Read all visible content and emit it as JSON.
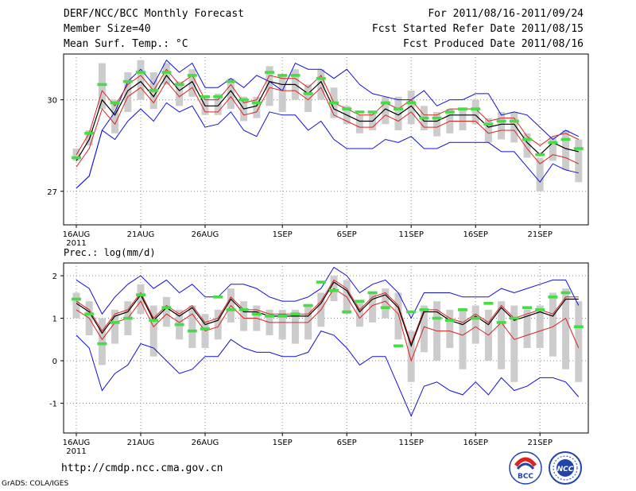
{
  "header": {
    "title": "DERF/NCC/BCC Monthly Forecast",
    "member_size": "Member Size=40",
    "variable": "Mean Surf. Temp.: °C",
    "period": "For 2011/08/16-2011/09/24",
    "started": "Fcst Started Refer Date 2011/08/15",
    "produced": "Fcst Produced Date 2011/08/16"
  },
  "footer": {
    "url": "http://cmdp.ncc.cma.gov.cn",
    "grads": "GrADS: COLA/IGES",
    "logo_bcc": "BCC",
    "logo_ncc": "NCC"
  },
  "colors": {
    "envelope": "#1010dd",
    "spread": "#dd2222",
    "mean": "#000000",
    "observed": "#44dd44",
    "bar": "#cccccc",
    "grid": "#888888"
  },
  "chart_data": [
    {
      "type": "line",
      "title": "Mean Surf. Temp.: °C",
      "x_tick_labels": [
        "16AUG",
        "21AUG",
        "26AUG",
        "1SEP",
        "6SEP",
        "11SEP",
        "16SEP",
        "21SEP"
      ],
      "x_year_label": "2011",
      "x_tick_days": [
        1,
        6,
        11,
        17,
        22,
        27,
        32,
        37
      ],
      "days": [
        1,
        40
      ],
      "ylim": [
        25.9,
        31.5
      ],
      "y_ticks": [
        27,
        30
      ],
      "y_tick_labels": [
        "27",
        "30"
      ],
      "series": [
        {
          "name": "max",
          "values": [
            27.1,
            27.5,
            29.0,
            29.6,
            30.6,
            31.0,
            30.5,
            31.3,
            30.9,
            31.2,
            30.4,
            30.4,
            30.7,
            30.4,
            30.8,
            30.6,
            30.3,
            31.2,
            31.0,
            31.0,
            30.7,
            31.0,
            30.5,
            30.2,
            30.1,
            30.0,
            30.0,
            30.3,
            29.8,
            30.0,
            30.0,
            30.2,
            30.2,
            29.5,
            29.6,
            29.5,
            29.1,
            28.7,
            29.0,
            28.8
          ]
        },
        {
          "name": "ensemble upper",
          "values": [
            28.2,
            28.9,
            30.3,
            29.8,
            30.5,
            30.8,
            30.3,
            31.0,
            30.5,
            30.8,
            30.0,
            30.0,
            30.5,
            29.9,
            30.0,
            30.8,
            30.7,
            30.7,
            30.4,
            30.8,
            29.9,
            29.7,
            29.5,
            29.5,
            29.9,
            29.7,
            30.0,
            29.5,
            29.5,
            29.7,
            29.7,
            29.7,
            29.3,
            29.4,
            29.4,
            28.8,
            28.5,
            28.8,
            28.9,
            28.7
          ]
        },
        {
          "name": "ensemble mean",
          "values": [
            28.0,
            28.7,
            30.0,
            29.5,
            30.3,
            30.6,
            30.1,
            30.8,
            30.3,
            30.6,
            29.8,
            29.8,
            30.3,
            29.7,
            29.8,
            30.6,
            30.5,
            30.5,
            30.2,
            30.6,
            29.7,
            29.5,
            29.3,
            29.3,
            29.7,
            29.5,
            29.8,
            29.3,
            29.3,
            29.5,
            29.5,
            29.5,
            29.1,
            29.2,
            29.2,
            28.6,
            28.2,
            28.6,
            28.4,
            28.3
          ]
        },
        {
          "name": "ensemble lower",
          "values": [
            27.8,
            28.4,
            29.7,
            29.2,
            30.1,
            30.4,
            29.9,
            30.6,
            30.1,
            30.4,
            29.6,
            29.6,
            30.1,
            29.5,
            29.6,
            30.4,
            30.3,
            30.3,
            30.0,
            30.4,
            29.5,
            29.3,
            29.1,
            29.1,
            29.5,
            29.3,
            29.6,
            29.1,
            29.1,
            29.3,
            29.3,
            29.3,
            28.9,
            29.0,
            29.0,
            28.4,
            27.9,
            28.2,
            28.1,
            27.9
          ]
        },
        {
          "name": "min",
          "values": [
            27.1,
            27.5,
            29.0,
            28.7,
            29.3,
            29.7,
            29.3,
            29.9,
            29.6,
            29.8,
            29.1,
            29.2,
            29.6,
            29.0,
            28.8,
            29.6,
            29.5,
            29.5,
            29.0,
            29.3,
            28.7,
            28.4,
            28.4,
            28.4,
            28.7,
            28.6,
            28.8,
            28.4,
            28.4,
            28.6,
            28.6,
            28.6,
            28.6,
            28.3,
            28.3,
            27.8,
            27.3,
            27.9,
            27.7,
            27.6
          ]
        },
        {
          "name": "observed",
          "values": [
            28.1,
            28.9,
            30.5,
            29.9,
            30.6,
            30.9,
            30.3,
            30.9,
            30.5,
            30.8,
            30.1,
            30.1,
            30.6,
            30.0,
            29.9,
            30.9,
            30.8,
            30.8,
            30.2,
            30.7,
            29.9,
            29.7,
            29.6,
            29.6,
            29.9,
            29.7,
            29.9,
            29.4,
            29.4,
            29.6,
            29.7,
            29.7,
            29.2,
            29.3,
            29.3,
            28.7,
            28.2,
            28.6,
            28.7,
            28.4
          ]
        }
      ],
      "spread_bars": [
        [
          28.0,
          28.4
        ],
        [
          28.5,
          29.0
        ],
        [
          29.7,
          31.2
        ],
        [
          28.9,
          30.0
        ],
        [
          29.6,
          30.9
        ],
        [
          30.0,
          31.3
        ],
        [
          29.7,
          30.9
        ],
        [
          30.5,
          31.2
        ],
        [
          29.8,
          30.6
        ],
        [
          30.1,
          31.0
        ],
        [
          29.5,
          30.1
        ],
        [
          29.5,
          30.2
        ],
        [
          29.7,
          30.7
        ],
        [
          29.3,
          30.1
        ],
        [
          29.4,
          30.1
        ],
        [
          29.8,
          31.1
        ],
        [
          29.6,
          30.8
        ],
        [
          30.0,
          31.0
        ],
        [
          29.6,
          30.5
        ],
        [
          30.0,
          31.0
        ],
        [
          29.4,
          30.4
        ],
        [
          29.2,
          29.8
        ],
        [
          28.9,
          29.5
        ],
        [
          29.0,
          29.6
        ],
        [
          29.2,
          30.1
        ],
        [
          29.0,
          30.1
        ],
        [
          29.2,
          30.3
        ],
        [
          29.0,
          29.8
        ],
        [
          28.8,
          29.6
        ],
        [
          28.9,
          29.7
        ],
        [
          29.0,
          29.7
        ],
        [
          29.2,
          30.0
        ],
        [
          28.6,
          29.4
        ],
        [
          28.7,
          29.6
        ],
        [
          28.6,
          29.6
        ],
        [
          28.1,
          28.9
        ],
        [
          27.0,
          28.1
        ],
        [
          28.0,
          28.8
        ],
        [
          27.7,
          29.0
        ],
        [
          27.3,
          28.7
        ]
      ]
    },
    {
      "type": "line",
      "title": "Prec.: log(mm/d)",
      "x_tick_labels": [
        "16AUG",
        "21AUG",
        "26AUG",
        "1SEP",
        "6SEP",
        "11SEP",
        "16SEP",
        "21SEP"
      ],
      "x_year_label": "2011",
      "x_tick_days": [
        1,
        6,
        11,
        17,
        22,
        27,
        32,
        37
      ],
      "days": [
        1,
        40
      ],
      "ylim": [
        -1.7,
        2.3
      ],
      "y_ticks": [
        -1,
        0,
        1,
        2
      ],
      "y_tick_labels": [
        "-1",
        "0",
        "1",
        "2"
      ],
      "series": [
        {
          "name": "max",
          "values": [
            1.9,
            1.7,
            1.1,
            1.5,
            1.8,
            2.0,
            1.7,
            1.9,
            1.6,
            1.8,
            1.5,
            1.5,
            1.8,
            1.8,
            1.7,
            1.5,
            1.4,
            1.4,
            1.5,
            1.7,
            2.2,
            2.0,
            1.6,
            1.8,
            1.9,
            1.6,
            1.0,
            1.6,
            1.6,
            1.6,
            1.5,
            1.5,
            1.5,
            1.7,
            1.6,
            1.7,
            1.8,
            1.9,
            1.9,
            1.3
          ]
        },
        {
          "name": "ensemble upper",
          "values": [
            1.4,
            1.2,
            0.7,
            1.1,
            1.2,
            1.6,
            1.0,
            1.3,
            1.1,
            1.3,
            0.9,
            1.0,
            1.5,
            1.2,
            1.2,
            1.1,
            1.1,
            1.1,
            1.1,
            1.4,
            1.9,
            1.7,
            1.2,
            1.5,
            1.6,
            1.3,
            0.4,
            1.2,
            1.2,
            1.0,
            0.9,
            1.1,
            0.9,
            1.3,
            1.0,
            1.1,
            1.2,
            1.1,
            1.5,
            1.5
          ]
        },
        {
          "name": "ensemble mean",
          "values": [
            1.35,
            1.15,
            0.65,
            1.05,
            1.15,
            1.55,
            0.95,
            1.25,
            1.05,
            1.25,
            0.85,
            0.95,
            1.45,
            1.15,
            1.15,
            1.05,
            1.05,
            1.05,
            1.05,
            1.35,
            1.85,
            1.65,
            1.15,
            1.45,
            1.55,
            1.25,
            0.35,
            1.15,
            1.15,
            0.95,
            0.85,
            1.05,
            0.85,
            1.25,
            0.95,
            1.05,
            1.15,
            1.05,
            1.45,
            1.45
          ]
        },
        {
          "name": "ensemble lower",
          "values": [
            1.2,
            1.0,
            0.5,
            0.9,
            1.0,
            1.4,
            0.8,
            1.1,
            0.9,
            1.1,
            0.7,
            0.8,
            1.3,
            1.0,
            1.0,
            0.9,
            0.9,
            0.9,
            0.9,
            1.2,
            1.7,
            1.5,
            1.0,
            1.3,
            1.4,
            1.1,
            0.0,
            0.8,
            0.7,
            0.7,
            0.6,
            0.8,
            0.6,
            0.9,
            0.5,
            0.6,
            0.7,
            0.8,
            1.0,
            0.3
          ]
        },
        {
          "name": "min",
          "values": [
            0.6,
            0.3,
            -0.7,
            -0.3,
            -0.1,
            0.4,
            0.3,
            0.0,
            -0.3,
            -0.2,
            0.1,
            0.1,
            0.5,
            0.3,
            0.2,
            0.2,
            0.1,
            0.1,
            0.2,
            0.7,
            0.6,
            0.3,
            -0.1,
            0.1,
            0.1,
            -0.6,
            -1.3,
            -0.6,
            -0.5,
            -0.7,
            -0.8,
            -0.5,
            -0.8,
            -0.4,
            -0.7,
            -0.6,
            -0.4,
            -0.4,
            -0.5,
            -0.85
          ]
        },
        {
          "name": "observed",
          "values": [
            1.45,
            1.1,
            0.4,
            0.9,
            1.0,
            1.55,
            0.95,
            1.25,
            0.85,
            0.7,
            0.75,
            1.5,
            1.2,
            1.2,
            1.1,
            1.05,
            1.05,
            1.1,
            1.3,
            1.85,
            1.65,
            1.15,
            1.4,
            1.6,
            1.25,
            0.35,
            1.15,
            1.2,
            1.0,
            0.95,
            1.2,
            1.0,
            1.35,
            0.9,
            1.0,
            1.25,
            1.2,
            1.5,
            1.6,
            0.8
          ]
        }
      ],
      "spread_bars": [
        [
          1.0,
          1.6
        ],
        [
          0.6,
          1.4
        ],
        [
          -0.1,
          1.0
        ],
        [
          0.4,
          1.2
        ],
        [
          0.6,
          1.4
        ],
        [
          1.1,
          1.8
        ],
        [
          0.1,
          1.3
        ],
        [
          0.8,
          1.5
        ],
        [
          0.5,
          1.2
        ],
        [
          0.3,
          1.3
        ],
        [
          0.3,
          1.1
        ],
        [
          0.5,
          1.2
        ],
        [
          0.9,
          1.7
        ],
        [
          0.7,
          1.4
        ],
        [
          0.7,
          1.3
        ],
        [
          0.6,
          1.2
        ],
        [
          0.5,
          1.2
        ],
        [
          0.4,
          1.2
        ],
        [
          0.5,
          1.3
        ],
        [
          0.8,
          1.6
        ],
        [
          1.4,
          2.0
        ],
        [
          1.1,
          1.9
        ],
        [
          0.8,
          1.4
        ],
        [
          0.9,
          1.6
        ],
        [
          1.0,
          1.7
        ],
        [
          0.5,
          1.6
        ],
        [
          -0.5,
          0.7
        ],
        [
          0.2,
          1.3
        ],
        [
          0.0,
          1.4
        ],
        [
          0.3,
          1.2
        ],
        [
          -0.2,
          1.2
        ],
        [
          0.4,
          1.3
        ],
        [
          0.0,
          1.2
        ],
        [
          -0.2,
          1.4
        ],
        [
          -0.5,
          1.3
        ],
        [
          0.3,
          1.2
        ],
        [
          0.3,
          1.3
        ],
        [
          0.1,
          1.6
        ],
        [
          -0.2,
          1.7
        ],
        [
          -0.5,
          1.4
        ]
      ]
    }
  ]
}
